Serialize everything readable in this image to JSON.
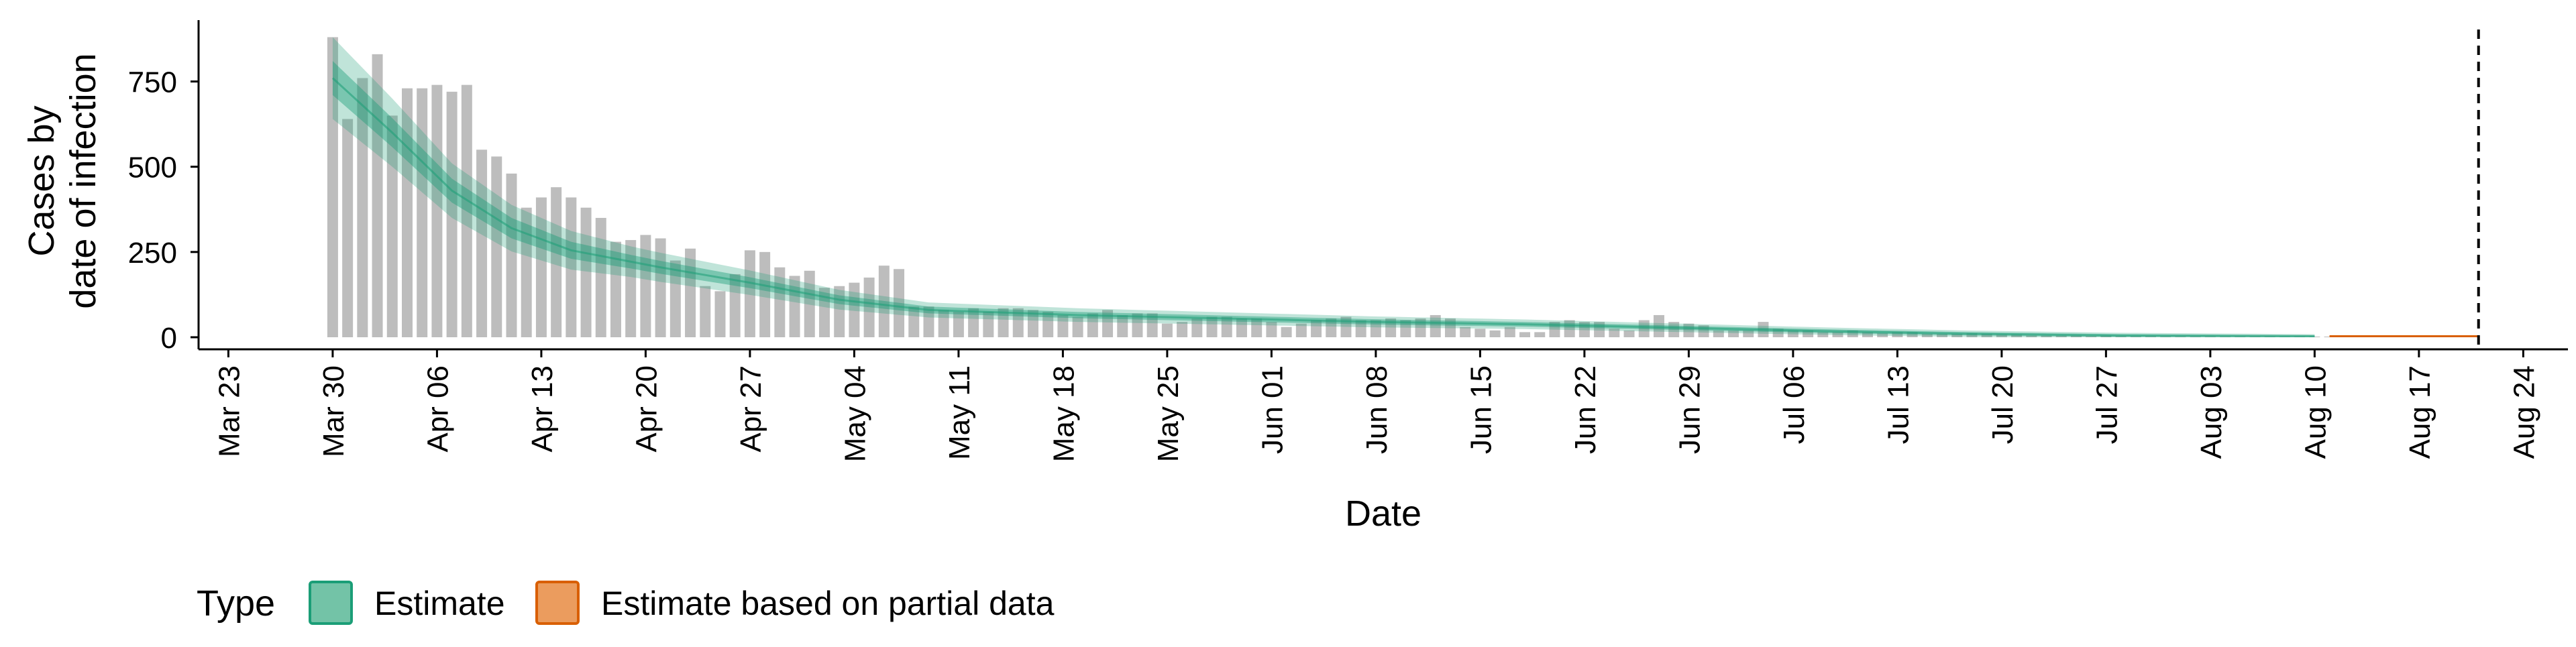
{
  "chart_data": {
    "type": "bar",
    "title": "",
    "xlabel": "Date",
    "ylabel_lines": [
      "Cases by",
      "date of infection"
    ],
    "ylim": [
      0,
      930
    ],
    "yticks": [
      0,
      250,
      500,
      750
    ],
    "x_start": "2020-03-21",
    "x_end": "2020-08-27",
    "xticks": [
      {
        "date": "2020-03-23",
        "label": "Mar 23"
      },
      {
        "date": "2020-03-30",
        "label": "Mar 30"
      },
      {
        "date": "2020-04-06",
        "label": "Apr 06"
      },
      {
        "date": "2020-04-13",
        "label": "Apr 13"
      },
      {
        "date": "2020-04-20",
        "label": "Apr 20"
      },
      {
        "date": "2020-04-27",
        "label": "Apr 27"
      },
      {
        "date": "2020-05-04",
        "label": "May 04"
      },
      {
        "date": "2020-05-11",
        "label": "May 11"
      },
      {
        "date": "2020-05-18",
        "label": "May 18"
      },
      {
        "date": "2020-05-25",
        "label": "May 25"
      },
      {
        "date": "2020-06-01",
        "label": "Jun 01"
      },
      {
        "date": "2020-06-08",
        "label": "Jun 08"
      },
      {
        "date": "2020-06-15",
        "label": "Jun 15"
      },
      {
        "date": "2020-06-22",
        "label": "Jun 22"
      },
      {
        "date": "2020-06-29",
        "label": "Jun 29"
      },
      {
        "date": "2020-07-06",
        "label": "Jul 06"
      },
      {
        "date": "2020-07-13",
        "label": "Jul 13"
      },
      {
        "date": "2020-07-20",
        "label": "Jul 20"
      },
      {
        "date": "2020-07-27",
        "label": "Jul 27"
      },
      {
        "date": "2020-08-03",
        "label": "Aug 03"
      },
      {
        "date": "2020-08-10",
        "label": "Aug 10"
      },
      {
        "date": "2020-08-17",
        "label": "Aug 17"
      },
      {
        "date": "2020-08-24",
        "label": "Aug 24"
      }
    ],
    "bars_start_date": "2020-03-30",
    "bar_values": [
      880,
      640,
      760,
      830,
      650,
      730,
      730,
      740,
      720,
      740,
      550,
      530,
      480,
      380,
      410,
      440,
      410,
      380,
      350,
      280,
      285,
      300,
      290,
      225,
      260,
      150,
      135,
      185,
      255,
      250,
      205,
      180,
      195,
      145,
      150,
      160,
      175,
      210,
      200,
      90,
      90,
      80,
      75,
      85,
      75,
      85,
      85,
      80,
      75,
      65,
      60,
      70,
      80,
      65,
      70,
      70,
      40,
      45,
      55,
      60,
      60,
      55,
      55,
      45,
      30,
      40,
      50,
      55,
      60,
      50,
      50,
      55,
      50,
      55,
      65,
      55,
      30,
      25,
      20,
      30,
      15,
      15,
      45,
      50,
      45,
      45,
      25,
      20,
      50,
      65,
      45,
      40,
      35,
      20,
      20,
      20,
      45,
      25,
      20,
      20,
      15,
      15,
      20,
      15,
      12,
      15,
      15,
      10,
      10,
      10,
      12,
      10,
      8,
      8,
      5,
      5,
      5,
      5,
      3,
      5,
      3,
      3,
      3,
      2,
      2,
      2,
      2,
      2,
      2,
      2,
      2,
      2,
      2,
      2,
      2,
      2,
      2
    ],
    "estimate": {
      "start_date": "2020-03-30",
      "end_date": "2020-08-10",
      "median_anchors": [
        [
          0,
          760
        ],
        [
          4,
          600
        ],
        [
          8,
          430
        ],
        [
          12,
          320
        ],
        [
          16,
          255
        ],
        [
          22,
          205
        ],
        [
          28,
          160
        ],
        [
          34,
          110
        ],
        [
          40,
          80
        ],
        [
          50,
          65
        ],
        [
          60,
          55
        ],
        [
          70,
          45
        ],
        [
          80,
          38
        ],
        [
          90,
          28
        ],
        [
          100,
          18
        ],
        [
          110,
          10
        ],
        [
          120,
          5
        ],
        [
          133,
          3
        ]
      ],
      "inner_band_anchors": [
        [
          0,
          50
        ],
        [
          8,
          35
        ],
        [
          20,
          20
        ],
        [
          40,
          10
        ],
        [
          80,
          7
        ],
        [
          133,
          3
        ]
      ],
      "outer_band_anchors": [
        [
          0,
          120
        ],
        [
          8,
          80
        ],
        [
          20,
          45
        ],
        [
          40,
          22
        ],
        [
          80,
          14
        ],
        [
          133,
          6
        ]
      ]
    },
    "partial_estimate": {
      "start_date": "2020-08-11",
      "end_date": "2020-08-21",
      "value": 3,
      "band": 2
    },
    "vline_date": "2020-08-21",
    "colors": {
      "bars": "#bdbdbd",
      "estimate": "#1b9e77",
      "estimate_fill": "#73c3a7",
      "partial": "#d95f02",
      "partial_fill": "#eb9c5e"
    },
    "legend": {
      "position": "bottom-left",
      "title": "Type",
      "items": [
        "Estimate",
        "Estimate based on partial data"
      ]
    }
  }
}
